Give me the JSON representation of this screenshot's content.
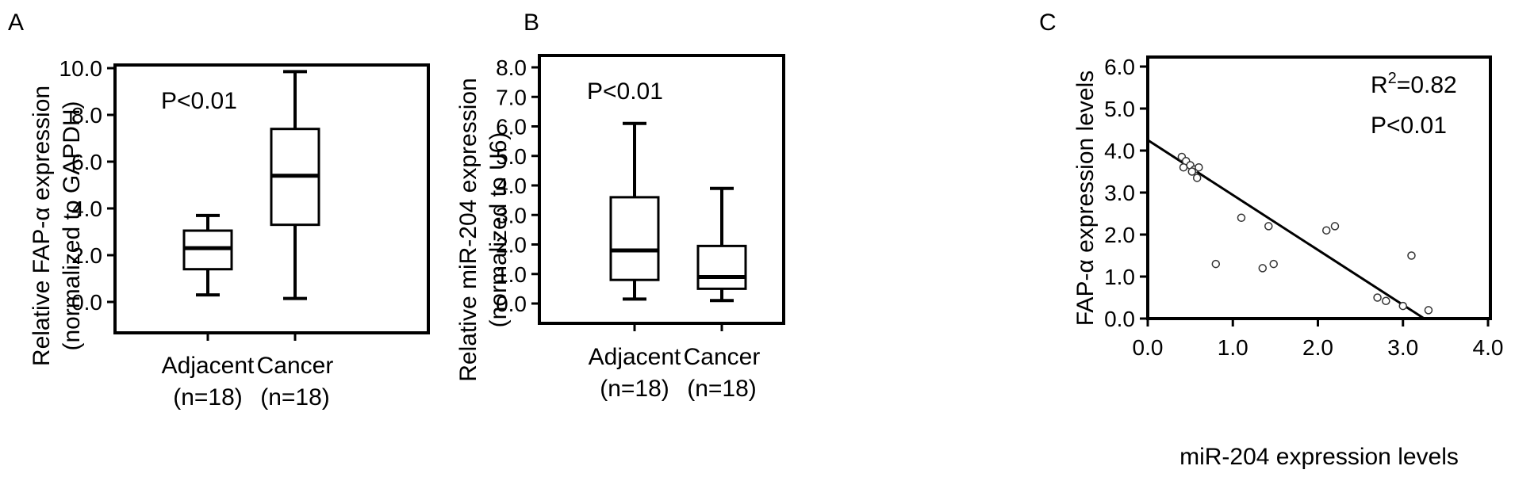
{
  "chart_data": [
    {
      "panel": "A",
      "type": "box",
      "ylabel": "Relative FAP-α expression",
      "ylabel2": "(normalized to GAPDH)",
      "ylim": [
        0,
        10
      ],
      "yticks": [
        "0.0",
        "2.0",
        "4.0",
        "6.0",
        "8.0",
        "10.0"
      ],
      "ytick_values": [
        0,
        2,
        4,
        6,
        8,
        10
      ],
      "annotations": [
        "P<0.01"
      ],
      "categories": [
        {
          "name": "Adjacent",
          "sub": "(n=18)",
          "min": 0.3,
          "q1": 1.4,
          "median": 2.3,
          "q3": 3.05,
          "max": 3.7
        },
        {
          "name": "Cancer",
          "sub": "(n=18)",
          "min": 0.15,
          "q1": 3.3,
          "median": 5.4,
          "q3": 7.4,
          "max": 9.85
        }
      ]
    },
    {
      "panel": "B",
      "type": "box",
      "ylabel": "Relative miR-204 expression",
      "ylabel2": "(normalized to U6)",
      "ylim": [
        0,
        8
      ],
      "yticks": [
        "0.0",
        "1.0",
        "2.0",
        "3.0",
        "4.0",
        "5.0",
        "6.0",
        "7.0",
        "8.0"
      ],
      "ytick_values": [
        0,
        1,
        2,
        3,
        4,
        5,
        6,
        7,
        8
      ],
      "annotations": [
        "P<0.01"
      ],
      "categories": [
        {
          "name": "Adjacent",
          "sub": "(n=18)",
          "min": 0.15,
          "q1": 0.8,
          "median": 1.8,
          "q3": 3.6,
          "max": 6.1
        },
        {
          "name": "Cancer",
          "sub": "(n=18)",
          "min": 0.1,
          "q1": 0.5,
          "median": 0.9,
          "q3": 1.95,
          "max": 3.9
        }
      ]
    },
    {
      "panel": "C",
      "type": "scatter",
      "xlabel": "miR-204 expression levels",
      "ylabel": "FAP-α expression levels",
      "xlim": [
        0,
        4
      ],
      "ylim": [
        0,
        6
      ],
      "xticks": [
        "0.0",
        "1.0",
        "2.0",
        "3.0",
        "4.0"
      ],
      "xtick_values": [
        0,
        1,
        2,
        3,
        4
      ],
      "yticks": [
        "0.0",
        "1.0",
        "2.0",
        "3.0",
        "4.0",
        "5.0",
        "6.0"
      ],
      "ytick_values": [
        0,
        1,
        2,
        3,
        4,
        5,
        6
      ],
      "annotation_r": "R",
      "annotation_r_sup": "2",
      "annotation_r_val": "=0.82",
      "annotation_p": "P<0.01",
      "points": [
        [
          0.4,
          3.85
        ],
        [
          0.45,
          3.75
        ],
        [
          0.5,
          3.65
        ],
        [
          0.55,
          3.55
        ],
        [
          0.6,
          3.6
        ],
        [
          0.42,
          3.6
        ],
        [
          0.58,
          3.35
        ],
        [
          0.52,
          3.5
        ],
        [
          1.1,
          2.4
        ],
        [
          1.42,
          2.2
        ],
        [
          2.1,
          2.1
        ],
        [
          2.2,
          2.2
        ],
        [
          0.8,
          1.3
        ],
        [
          1.35,
          1.2
        ],
        [
          1.48,
          1.3
        ],
        [
          2.7,
          0.5
        ],
        [
          2.8,
          0.42
        ],
        [
          3.1,
          1.5
        ],
        [
          3.0,
          0.3
        ],
        [
          3.3,
          0.2
        ]
      ],
      "fit_line": {
        "x": [
          0,
          3.25
        ],
        "y": [
          4.25,
          0
        ]
      }
    }
  ]
}
